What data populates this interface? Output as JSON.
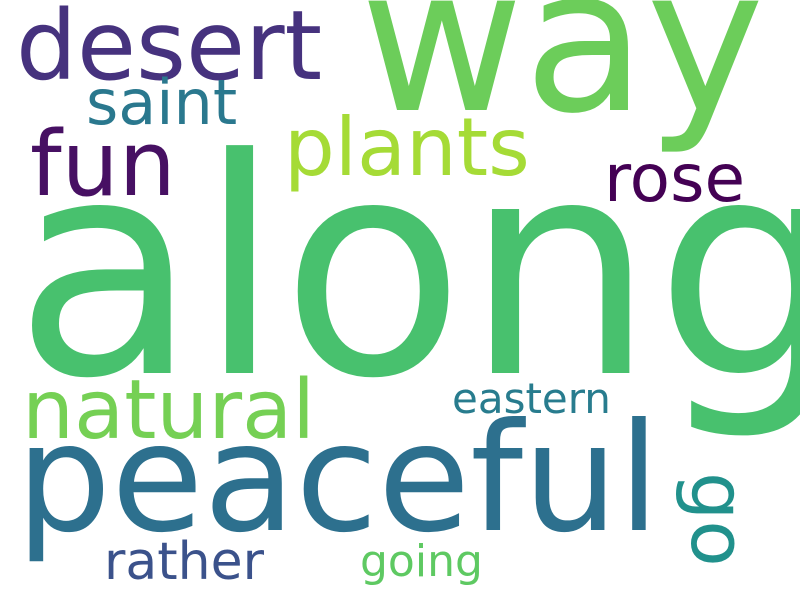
{
  "words": {
    "along": {
      "text": "along",
      "color": "#48c16e"
    },
    "way": {
      "text": "way",
      "color": "#6ccd5a"
    },
    "peaceful": {
      "text": "peaceful",
      "color": "#2d708e"
    },
    "desert": {
      "text": "desert",
      "color": "#46327e"
    },
    "fun": {
      "text": "fun",
      "color": "#471063"
    },
    "plants": {
      "text": "plants",
      "color": "#a5db36"
    },
    "natural": {
      "text": "natural",
      "color": "#75d054"
    },
    "saint": {
      "text": "saint",
      "color": "#2a788e"
    },
    "rose": {
      "text": "rose",
      "color": "#440154"
    },
    "eastern": {
      "text": "eastern",
      "color": "#287c8e"
    },
    "rather": {
      "text": "rather",
      "color": "#3b528b"
    },
    "going": {
      "text": "going",
      "color": "#5ec962"
    },
    "go": {
      "text": "go",
      "color": "#21918c"
    }
  }
}
